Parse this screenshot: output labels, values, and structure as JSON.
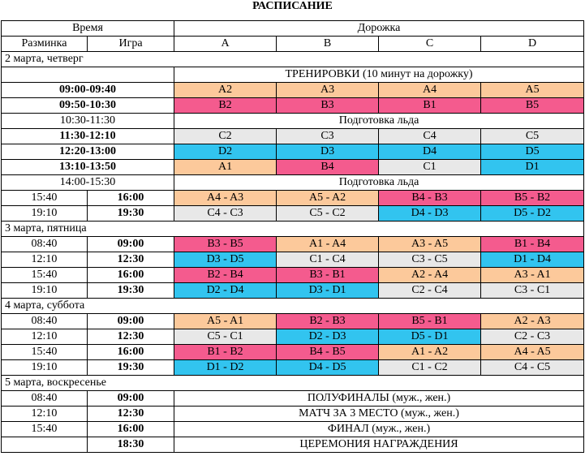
{
  "title": "РАСПИСАНИЕ",
  "header": {
    "time": "Время",
    "lane": "Дорожка",
    "warmup": "Разминка",
    "game": "Игра",
    "lanes": [
      "A",
      "B",
      "C",
      "D"
    ]
  },
  "colors": {
    "orange": "#fcc99b",
    "pink": "#f45b8e",
    "blue": "#32c4ef",
    "grey": "#e8e8e8"
  },
  "rows": [
    {
      "type": "day",
      "text": "2 марта, четверг"
    },
    {
      "type": "span",
      "text": "ТРЕНИРОВКИ (10 минут на дорожку)"
    },
    {
      "type": "games",
      "time": "09:00-09:40",
      "bold": true,
      "cells": [
        {
          "t": "A2",
          "c": "orange"
        },
        {
          "t": "A3",
          "c": "orange"
        },
        {
          "t": "A4",
          "c": "orange"
        },
        {
          "t": "A5",
          "c": "orange"
        }
      ]
    },
    {
      "type": "games",
      "time": "09:50-10:30",
      "bold": true,
      "cells": [
        {
          "t": "B2",
          "c": "pink"
        },
        {
          "t": "B3",
          "c": "pink"
        },
        {
          "t": "B1",
          "c": "pink"
        },
        {
          "t": "B5",
          "c": "pink"
        }
      ]
    },
    {
      "type": "span",
      "time": "10:30-11:30",
      "bold": false,
      "text": "Подготовка льда"
    },
    {
      "type": "games",
      "time": "11:30-12:10",
      "bold": true,
      "cells": [
        {
          "t": "C2",
          "c": "grey"
        },
        {
          "t": "C3",
          "c": "grey"
        },
        {
          "t": "C4",
          "c": "grey"
        },
        {
          "t": "C5",
          "c": "grey"
        }
      ]
    },
    {
      "type": "games",
      "time": "12:20-13:00",
      "bold": true,
      "cells": [
        {
          "t": "D2",
          "c": "blue"
        },
        {
          "t": "D3",
          "c": "blue"
        },
        {
          "t": "D4",
          "c": "blue"
        },
        {
          "t": "D5",
          "c": "blue"
        }
      ]
    },
    {
      "type": "games",
      "time": "13:10-13:50",
      "bold": true,
      "cells": [
        {
          "t": "A1",
          "c": "orange"
        },
        {
          "t": "B4",
          "c": "pink"
        },
        {
          "t": "C1",
          "c": "grey"
        },
        {
          "t": "D1",
          "c": "blue"
        }
      ]
    },
    {
      "type": "span",
      "time": "14:00-15:30",
      "bold": false,
      "text": "Подготовка льда"
    },
    {
      "type": "games",
      "warmup": "15:40",
      "game": "16:00",
      "cells": [
        {
          "t": "A4 - A3",
          "c": "orange"
        },
        {
          "t": "A5 - A2",
          "c": "orange"
        },
        {
          "t": "B4 - B3",
          "c": "pink"
        },
        {
          "t": "B5 - B2",
          "c": "pink"
        }
      ]
    },
    {
      "type": "games",
      "warmup": "19:10",
      "game": "19:30",
      "cells": [
        {
          "t": "C4 - C3",
          "c": "grey"
        },
        {
          "t": "C5 - C2",
          "c": "grey"
        },
        {
          "t": "D4 - D3",
          "c": "blue"
        },
        {
          "t": "D5 - D2",
          "c": "blue"
        }
      ]
    },
    {
      "type": "day",
      "text": "3 марта, пятница"
    },
    {
      "type": "games",
      "warmup": "08:40",
      "game": "09:00",
      "cells": [
        {
          "t": "B3 - B5",
          "c": "pink"
        },
        {
          "t": "A1 - A4",
          "c": "orange"
        },
        {
          "t": "A3 - A5",
          "c": "orange"
        },
        {
          "t": "B1 - B4",
          "c": "pink"
        }
      ]
    },
    {
      "type": "games",
      "warmup": "12:10",
      "game": "12:30",
      "cells": [
        {
          "t": "D3 - D5",
          "c": "blue"
        },
        {
          "t": "C1 - C4",
          "c": "grey"
        },
        {
          "t": "C3 - C5",
          "c": "grey"
        },
        {
          "t": "D1 - D4",
          "c": "blue"
        }
      ]
    },
    {
      "type": "games",
      "warmup": "15:40",
      "game": "16:00",
      "cells": [
        {
          "t": "B2 - B4",
          "c": "pink"
        },
        {
          "t": "B3 - B1",
          "c": "pink"
        },
        {
          "t": "A2 - A4",
          "c": "orange"
        },
        {
          "t": "A3 - A1",
          "c": "orange"
        }
      ]
    },
    {
      "type": "games",
      "warmup": "19:10",
      "game": "19:30",
      "cells": [
        {
          "t": "D2 - D4",
          "c": "blue"
        },
        {
          "t": "D3 - D1",
          "c": "blue"
        },
        {
          "t": "C2 - C4",
          "c": "grey"
        },
        {
          "t": "C3 - C1",
          "c": "grey"
        }
      ]
    },
    {
      "type": "day",
      "text": "4 марта, суббота"
    },
    {
      "type": "games",
      "warmup": "08:40",
      "game": "09:00",
      "cells": [
        {
          "t": "A5 - A1",
          "c": "orange"
        },
        {
          "t": "B2 - B3",
          "c": "pink"
        },
        {
          "t": "B5 - B1",
          "c": "pink"
        },
        {
          "t": "A2 - A3",
          "c": "orange"
        }
      ]
    },
    {
      "type": "games",
      "warmup": "12:10",
      "game": "12:30",
      "cells": [
        {
          "t": "C5 - C1",
          "c": "grey"
        },
        {
          "t": "D2 - D3",
          "c": "blue"
        },
        {
          "t": "D5 - D1",
          "c": "blue"
        },
        {
          "t": "C2 - C3",
          "c": "grey"
        }
      ]
    },
    {
      "type": "games",
      "warmup": "15:40",
      "game": "16:00",
      "cells": [
        {
          "t": "B1 - B2",
          "c": "pink"
        },
        {
          "t": "B4 - B5",
          "c": "pink"
        },
        {
          "t": "A1 - A2",
          "c": "orange"
        },
        {
          "t": "A4 - A5",
          "c": "orange"
        }
      ]
    },
    {
      "type": "games",
      "warmup": "19:10",
      "game": "19:30",
      "cells": [
        {
          "t": "D1 - D2",
          "c": "blue"
        },
        {
          "t": "D4 - D5",
          "c": "blue"
        },
        {
          "t": "C1 - C2",
          "c": "grey"
        },
        {
          "t": "C4 - C5",
          "c": "grey"
        }
      ]
    },
    {
      "type": "day",
      "text": "5 марта, воскресенье"
    },
    {
      "type": "span",
      "warmup": "08:40",
      "game": "09:00",
      "text": "ПОЛУФИНАЛЫ (муж., жен.)"
    },
    {
      "type": "span",
      "warmup": "12:10",
      "game": "12:30",
      "text": "МАТЧ ЗА 3 МЕСТО (муж., жен.)"
    },
    {
      "type": "span",
      "warmup": "15:40",
      "game": "16:00",
      "text": "ФИНАЛ (муж., жен.)"
    },
    {
      "type": "span",
      "warmup": "",
      "game": "18:30",
      "text": "ЦЕРЕМОНИЯ НАГРАЖДЕНИЯ"
    }
  ]
}
